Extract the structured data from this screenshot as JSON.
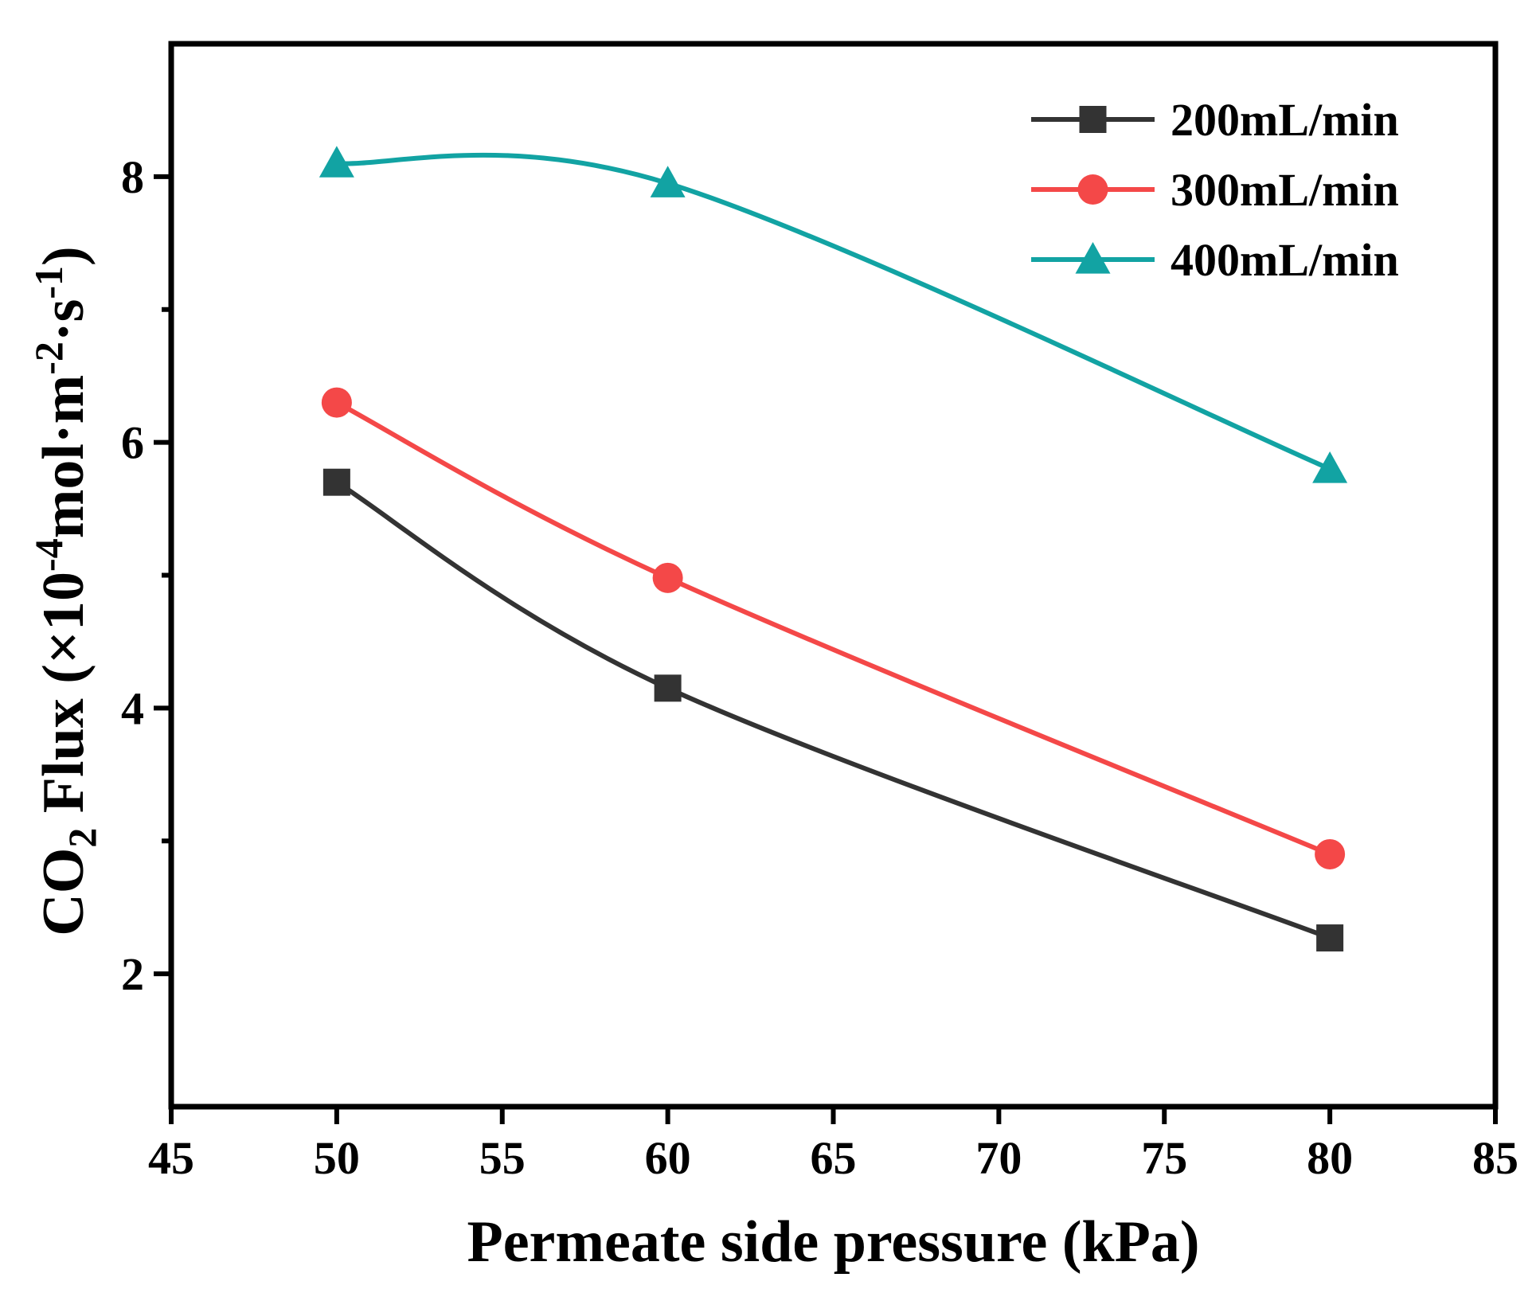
{
  "chart_data": {
    "type": "line",
    "title": "",
    "xlabel": "Permeate side pressure (kPa)",
    "ylabel": {
      "prefix": "CO",
      "sub1": "2",
      "mid": " Flux (×10",
      "sup1": "-4",
      "mid2": "mol·m",
      "sup2": "-2",
      "mid3": "·s",
      "sup3": "-1",
      "suffix": ")"
    },
    "xlim": [
      45,
      85
    ],
    "ylim": [
      1,
      9
    ],
    "xticks": [
      45,
      50,
      55,
      60,
      65,
      70,
      75,
      80,
      85
    ],
    "xtick_labels": [
      "45",
      "50",
      "55",
      "60",
      "65",
      "70",
      "75",
      "80",
      "85"
    ],
    "yticks_major": [
      2,
      4,
      6,
      8
    ],
    "ytick_labels": [
      "2",
      "4",
      "6",
      "8"
    ],
    "yticks_minor": [
      3,
      5,
      7
    ],
    "grid": false,
    "legend_position": "top-right",
    "series": [
      {
        "name": "200mL/min",
        "color": "#333333",
        "marker": "square",
        "x": [
          50,
          60,
          80
        ],
        "y": [
          5.7,
          4.15,
          2.27
        ]
      },
      {
        "name": "300mL/min",
        "color": "#f44848",
        "marker": "circle",
        "x": [
          50,
          60,
          80
        ],
        "y": [
          6.3,
          4.98,
          2.9
        ]
      },
      {
        "name": "400mL/min",
        "color": "#12a3a3",
        "marker": "triangle",
        "x": [
          50,
          60,
          80
        ],
        "y": [
          8.1,
          7.95,
          5.8
        ]
      }
    ]
  }
}
